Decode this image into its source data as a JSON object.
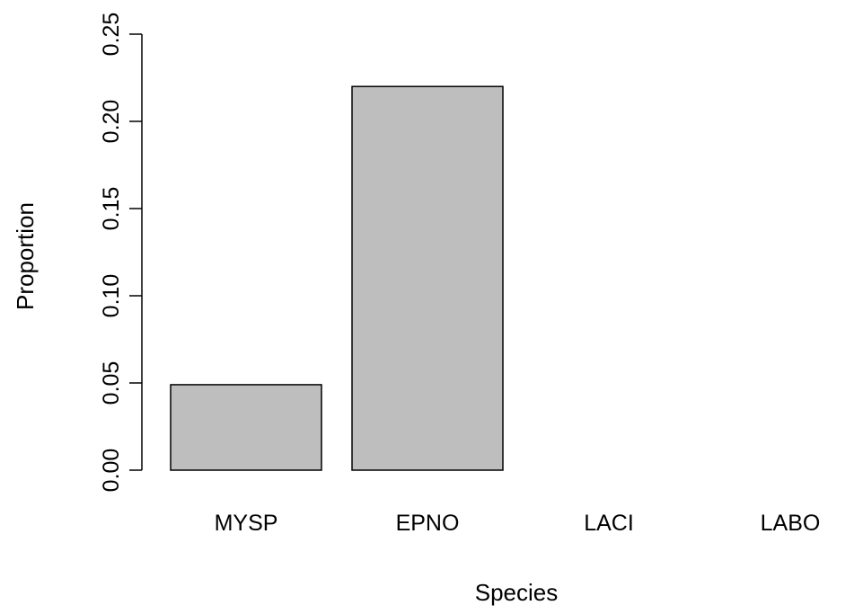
{
  "chart_data": {
    "type": "bar",
    "title": "",
    "xlabel": "Species",
    "ylabel": "Proportion",
    "categories": [
      "MYSP",
      "EPNO",
      "LACI",
      "LABO"
    ],
    "values": [
      0.049,
      0.22,
      0.0,
      0.0
    ],
    "ylim": [
      0,
      0.25
    ],
    "yticks": [
      0.0,
      0.05,
      0.1,
      0.15,
      0.2,
      0.25
    ],
    "ytick_labels": [
      "0.00",
      "0.05",
      "0.10",
      "0.15",
      "0.20",
      "0.25"
    ],
    "grid": false,
    "legend": "none",
    "bar_color": "#bebebe",
    "bar_edge_color": "#000000"
  }
}
